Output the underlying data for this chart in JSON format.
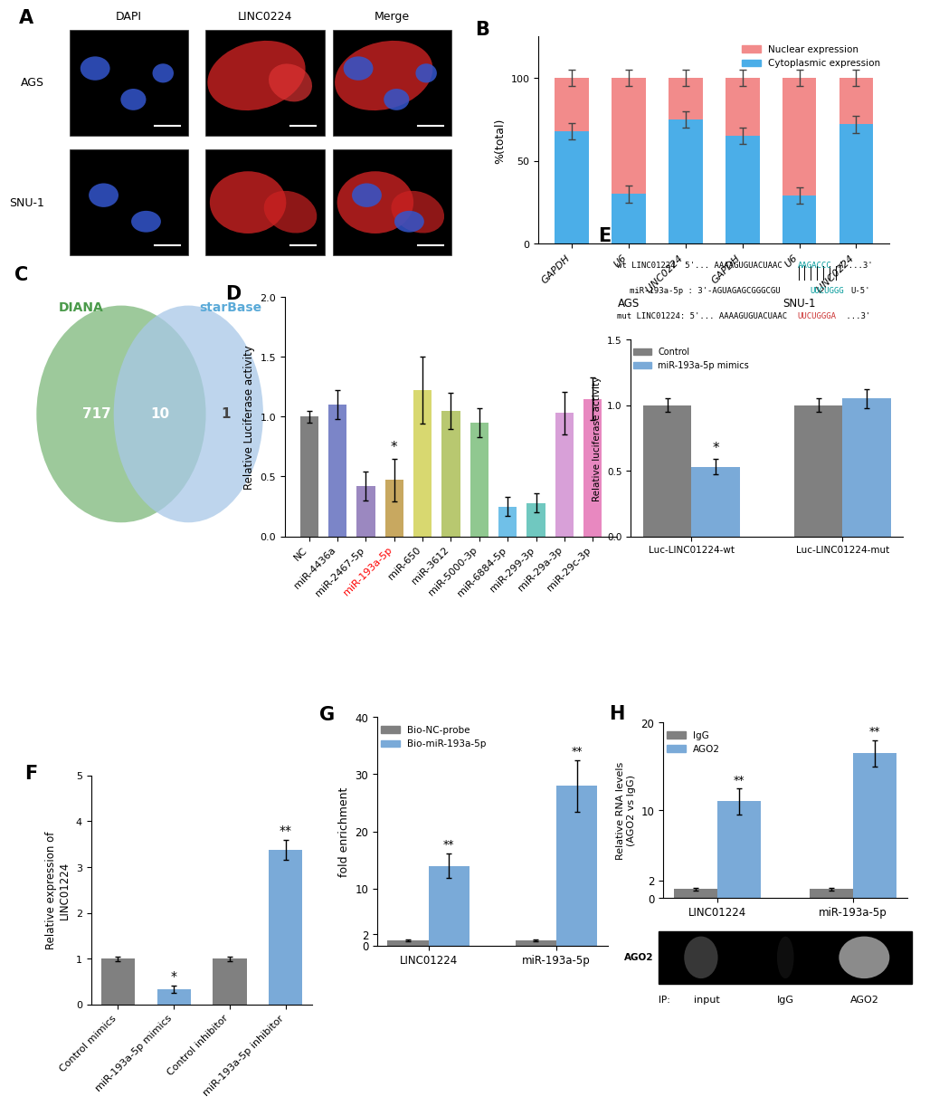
{
  "panel_B": {
    "categories": [
      "GAPDH",
      "U6",
      "LINC0224",
      "GAPDH",
      "U6",
      "LINC0224"
    ],
    "cytoplasm_values": [
      68,
      30,
      75,
      65,
      29,
      72
    ],
    "nuclear_values": [
      32,
      70,
      25,
      35,
      71,
      28
    ],
    "cyto_errors": [
      5,
      5,
      5,
      5,
      5,
      5
    ],
    "nuc_errors": [
      5,
      5,
      5,
      5,
      5,
      5
    ],
    "cytoplasm_color": "#4BAEE8",
    "nuclear_color": "#F28B8B",
    "ylabel": "%(total)",
    "ylim": [
      0,
      125
    ],
    "yticks": [
      0,
      50,
      100
    ],
    "group_labels": [
      "AGS",
      "SNU-1"
    ],
    "legend_nuclear": "Nuclear expression",
    "legend_cytoplasm": "Cytoplasmic expression"
  },
  "panel_C": {
    "diana_count": "717",
    "overlap_count": "10",
    "starbase_count": "1",
    "diana_color": "#7DB87A",
    "starbase_color": "#A8C8E8",
    "diana_label": "DIANA",
    "starbase_label": "starBase",
    "diana_label_color": "#4A9A4A",
    "starbase_label_color": "#5AAAD8"
  },
  "panel_D": {
    "categories": [
      "NC",
      "miR-4436a",
      "miR-2467-5p",
      "miR-193a-5p",
      "miR-650",
      "miR-3612",
      "miR-5000-3p",
      "miR-6884-5p",
      "miR-299-3p",
      "miR-29a-3p",
      "miR-29c-3p"
    ],
    "values": [
      1.0,
      1.1,
      0.42,
      0.47,
      1.22,
      1.05,
      0.95,
      0.25,
      0.28,
      1.03,
      1.15
    ],
    "errors": [
      0.05,
      0.12,
      0.12,
      0.18,
      0.28,
      0.15,
      0.12,
      0.08,
      0.08,
      0.18,
      0.18
    ],
    "colors": [
      "#808080",
      "#7B85C8",
      "#9B88C0",
      "#C8A860",
      "#D8D870",
      "#B8C870",
      "#90C890",
      "#70C0E8",
      "#70C8C0",
      "#D8A0D8",
      "#E888C0"
    ],
    "highlight_index": 3,
    "ylabel": "Relative Luciferase activity",
    "ylim": [
      0,
      2.0
    ],
    "yticks": [
      0.0,
      0.5,
      1.0,
      1.5,
      2.0
    ]
  },
  "panel_E": {
    "categories": [
      "Luc-LINC01224-wt",
      "Luc-LINC01224-mut"
    ],
    "control_values": [
      1.0,
      1.0
    ],
    "mimic_values": [
      0.53,
      1.05
    ],
    "control_errors": [
      0.05,
      0.05
    ],
    "mimic_errors": [
      0.06,
      0.07
    ],
    "control_color": "#808080",
    "mimic_color": "#7AAAD8",
    "ylabel": "Relative luciferase activity",
    "ylim": [
      0,
      1.5
    ],
    "yticks": [
      0.0,
      0.5,
      1.0,
      1.5
    ],
    "legend_control": "Control",
    "legend_mimic": "miR-193a-5p mimics"
  },
  "panel_F": {
    "categories": [
      "Control mimics",
      "miR-193a-5p mimics",
      "Control inhibitor",
      "miR-193a-5p inhibitor"
    ],
    "values": [
      1.0,
      0.32,
      1.0,
      3.38
    ],
    "errors": [
      0.05,
      0.08,
      0.05,
      0.22
    ],
    "colors": [
      "#808080",
      "#7AAAD8",
      "#808080",
      "#7AAAD8"
    ],
    "ylabel": "Relative expression of\nLINC01224",
    "ylim": [
      0,
      5
    ],
    "yticks": [
      0,
      1,
      2,
      3,
      4,
      5
    ],
    "star_indices": [
      1,
      3
    ],
    "star_labels": [
      "*",
      "**"
    ]
  },
  "panel_G": {
    "groups": [
      "LINC01224",
      "miR-193a-5p"
    ],
    "nc_values": [
      1.0,
      1.0
    ],
    "bio_values": [
      14.0,
      28.0
    ],
    "nc_errors": [
      0.15,
      0.15
    ],
    "bio_errors": [
      2.2,
      4.5
    ],
    "nc_color": "#808080",
    "bio_color": "#7AAAD8",
    "ylabel": "fold enrichment",
    "ylim": [
      0,
      40
    ],
    "yticks": [
      0,
      2,
      10,
      20,
      30,
      40
    ],
    "legend_nc": "Bio-NC-probe",
    "legend_bio": "Bio-miR-193a-5p",
    "star_labels": [
      "**",
      "**"
    ]
  },
  "panel_H": {
    "groups": [
      "LINC01224",
      "miR-193a-5p"
    ],
    "igg_values": [
      1.0,
      1.0
    ],
    "ago2_values": [
      11.0,
      16.5
    ],
    "igg_errors": [
      0.15,
      0.15
    ],
    "ago2_errors": [
      1.5,
      1.5
    ],
    "igg_color": "#808080",
    "ago2_color": "#7AAAD8",
    "ylabel": "Relative RNA levels\n(AGO2 vs IgG)",
    "ylim": [
      0,
      20
    ],
    "yticks": [
      0,
      2,
      10,
      20
    ],
    "legend_igg": "IgG",
    "legend_ago2": "AGO2",
    "star_labels": [
      "**",
      "**"
    ],
    "western_label": "AGO2",
    "ip_labels": [
      "input",
      "IgG",
      "AGO2"
    ]
  }
}
